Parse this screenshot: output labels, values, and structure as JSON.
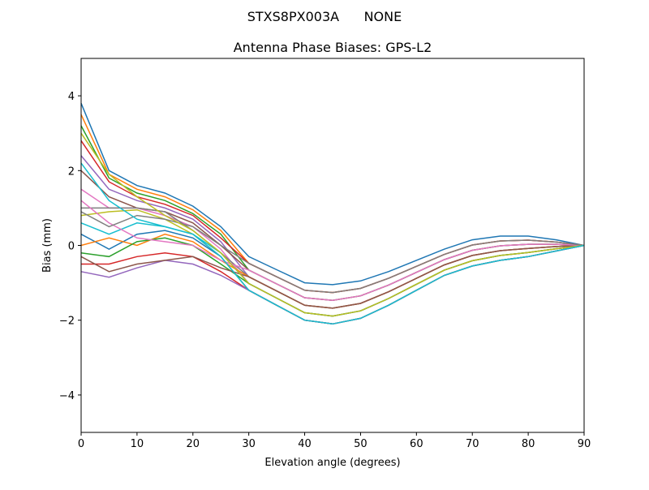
{
  "chart_data": {
    "type": "line",
    "suptitle": "STXS8PX003A      NONE",
    "title": "Antenna Phase Biases: GPS-L2",
    "xlabel": "Elevation angle (degrees)",
    "ylabel": "Bias (mm)",
    "xlim": [
      0,
      90
    ],
    "ylim": [
      -5,
      5
    ],
    "xticks": [
      0,
      10,
      20,
      30,
      40,
      50,
      60,
      70,
      80,
      90
    ],
    "yticks": [
      -4,
      -2,
      0,
      2,
      4
    ],
    "ytick_labels": [
      "−4",
      "−2",
      "0",
      "2",
      "4"
    ],
    "grid": false,
    "legend": "none",
    "colors": [
      "#1f77b4",
      "#ff7f0e",
      "#2ca02c",
      "#d62728",
      "#9467bd",
      "#8c564b",
      "#e377c2",
      "#7f7f7f",
      "#bcbd22",
      "#17becf"
    ],
    "x": [
      0,
      5,
      10,
      15,
      20,
      25,
      30,
      35,
      40,
      45,
      50,
      55,
      60,
      65,
      70,
      75,
      80,
      85,
      90
    ],
    "series": [
      {
        "values": [
          3.8,
          2.0,
          1.6,
          1.4,
          1.05,
          0.5,
          -0.3,
          -0.65,
          -1.0,
          -1.05,
          -0.95,
          -0.7,
          -0.4,
          -0.1,
          0.15,
          0.25,
          0.25,
          0.15,
          0
        ]
      },
      {
        "values": [
          3.5,
          1.9,
          1.5,
          1.3,
          0.95,
          0.4,
          -0.48,
          -0.84,
          -1.2,
          -1.26,
          -1.15,
          -0.88,
          -0.56,
          -0.24,
          0.01,
          0.12,
          0.14,
          0.09,
          0
        ]
      },
      {
        "values": [
          3.2,
          1.8,
          1.4,
          1.2,
          0.85,
          0.3,
          -0.66,
          -1.03,
          -1.4,
          -1.47,
          -1.35,
          -1.06,
          -0.72,
          -0.38,
          -0.13,
          -0.01,
          0.03,
          0.03,
          0
        ]
      },
      {
        "values": [
          2.8,
          1.7,
          1.3,
          1.1,
          0.8,
          0.2,
          -0.48,
          -0.84,
          -1.2,
          -1.26,
          -1.15,
          -0.88,
          -0.56,
          -0.24,
          0.01,
          0.12,
          0.14,
          0.09,
          0
        ]
      },
      {
        "values": [
          2.4,
          1.5,
          1.2,
          1.0,
          0.7,
          0.1,
          -0.84,
          -1.22,
          -1.6,
          -1.68,
          -1.55,
          -1.24,
          -0.88,
          -0.52,
          -0.27,
          -0.14,
          -0.08,
          -0.03,
          0
        ]
      },
      {
        "values": [
          2.0,
          1.3,
          1.0,
          0.9,
          0.6,
          0.0,
          -0.66,
          -1.03,
          -1.4,
          -1.47,
          -1.35,
          -1.06,
          -0.72,
          -0.38,
          -0.13,
          -0.01,
          0.03,
          0.03,
          0
        ]
      },
      {
        "values": [
          1.5,
          1.0,
          1.0,
          0.8,
          0.5,
          -0.1,
          -1.02,
          -1.41,
          -1.8,
          -1.89,
          -1.75,
          -1.42,
          -1.04,
          -0.66,
          -0.41,
          -0.27,
          -0.19,
          -0.09,
          0
        ]
      },
      {
        "values": [
          1.0,
          1.0,
          1.0,
          0.9,
          0.4,
          -0.2,
          -0.84,
          -1.22,
          -1.6,
          -1.68,
          -1.55,
          -1.24,
          -0.88,
          -0.52,
          -0.27,
          -0.14,
          -0.08,
          -0.03,
          0
        ]
      },
      {
        "values": [
          0.8,
          0.9,
          0.95,
          0.7,
          0.3,
          -0.3,
          -1.2,
          -1.6,
          -2.0,
          -2.1,
          -1.95,
          -1.6,
          -1.2,
          -0.8,
          -0.55,
          -0.4,
          -0.3,
          -0.15,
          0
        ]
      },
      {
        "values": [
          0.6,
          0.3,
          0.6,
          0.5,
          0.3,
          -0.2,
          -1.02,
          -1.41,
          -1.8,
          -1.89,
          -1.75,
          -1.42,
          -1.04,
          -0.66,
          -0.41,
          -0.27,
          -0.19,
          -0.09,
          0
        ]
      },
      {
        "values": [
          0.3,
          -0.1,
          0.3,
          0.4,
          0.2,
          -0.3,
          -1.2,
          -1.6,
          -2.0,
          -2.1,
          -1.95,
          -1.6,
          -1.2,
          -0.8,
          -0.55,
          -0.4,
          -0.3,
          -0.15,
          0
        ]
      },
      {
        "values": [
          0.0,
          0.2,
          0.0,
          0.3,
          0.1,
          -0.4,
          -0.84,
          -1.22,
          -1.6,
          -1.68,
          -1.55,
          -1.24,
          -0.88,
          -0.52,
          -0.27,
          -0.14,
          -0.08,
          -0.03,
          0
        ]
      },
      {
        "values": [
          -0.2,
          -0.3,
          0.1,
          0.2,
          0.0,
          -0.5,
          -1.02,
          -1.41,
          -1.8,
          -1.89,
          -1.75,
          -1.42,
          -1.04,
          -0.66,
          -0.41,
          -0.27,
          -0.19,
          -0.09,
          0
        ]
      },
      {
        "values": [
          -0.5,
          -0.5,
          -0.3,
          -0.2,
          -0.3,
          -0.7,
          -1.2,
          -1.6,
          -2.0,
          -2.1,
          -1.95,
          -1.6,
          -1.2,
          -0.8,
          -0.55,
          -0.4,
          -0.3,
          -0.15,
          0
        ]
      },
      {
        "values": [
          -0.7,
          -0.85,
          -0.6,
          -0.4,
          -0.5,
          -0.8,
          -1.2,
          -1.6,
          -2.0,
          -2.1,
          -1.95,
          -1.6,
          -1.2,
          -0.8,
          -0.55,
          -0.4,
          -0.3,
          -0.15,
          0
        ]
      },
      {
        "values": [
          -0.3,
          -0.7,
          -0.5,
          -0.4,
          -0.3,
          -0.6,
          -0.84,
          -1.22,
          -1.6,
          -1.68,
          -1.55,
          -1.24,
          -0.88,
          -0.52,
          -0.27,
          -0.14,
          -0.08,
          -0.03,
          0
        ]
      },
      {
        "values": [
          1.2,
          0.6,
          0.2,
          0.1,
          0.0,
          -0.4,
          -0.66,
          -1.03,
          -1.4,
          -1.47,
          -1.35,
          -1.06,
          -0.72,
          -0.38,
          -0.13,
          -0.01,
          0.03,
          0.03,
          0
        ]
      },
      {
        "values": [
          0.9,
          0.5,
          0.8,
          0.7,
          0.5,
          0.0,
          -0.48,
          -0.84,
          -1.2,
          -1.26,
          -1.15,
          -0.88,
          -0.56,
          -0.24,
          0.01,
          0.12,
          0.14,
          0.09,
          0
        ]
      },
      {
        "values": [
          3.0,
          1.9,
          1.3,
          0.8,
          0.4,
          -0.2,
          -1.02,
          -1.41,
          -1.8,
          -1.89,
          -1.75,
          -1.42,
          -1.04,
          -0.66,
          -0.41,
          -0.27,
          -0.19,
          -0.09,
          0
        ]
      },
      {
        "values": [
          2.2,
          1.2,
          0.7,
          0.5,
          0.3,
          -0.3,
          -1.2,
          -1.6,
          -2.0,
          -2.1,
          -1.95,
          -1.6,
          -1.2,
          -0.8,
          -0.55,
          -0.4,
          -0.3,
          -0.15,
          0
        ]
      }
    ]
  }
}
